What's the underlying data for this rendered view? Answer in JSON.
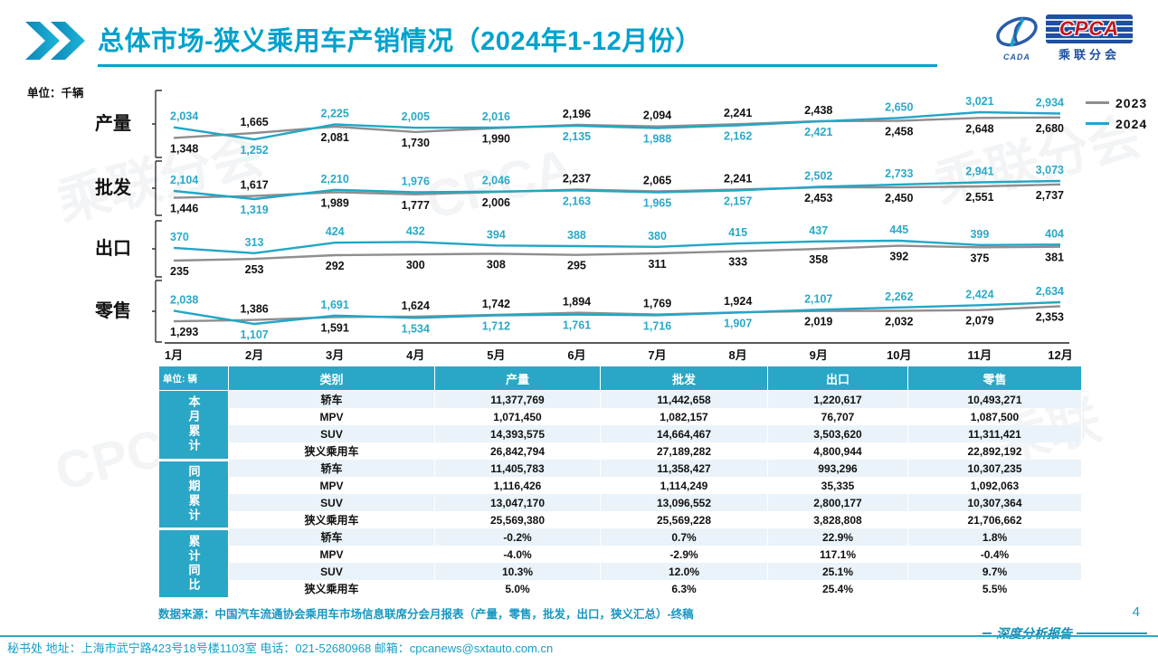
{
  "meta": {
    "chart_unit": "单位：千辆",
    "page_number": "4",
    "report_label": "深度分析报告"
  },
  "header": {
    "title": "总体市场-狭义乘用车产销情况（2024年1-12月份）",
    "logo": {
      "org_abbr": "CPCA",
      "org_sub": "乘联分会",
      "emblem_text": "CADA"
    }
  },
  "legend": {
    "items": [
      {
        "label": "2023",
        "color": "#8e8e8e"
      },
      {
        "label": "2024",
        "color": "#23a6c6"
      }
    ]
  },
  "chart_data": {
    "type": "line",
    "x": [
      "1月",
      "2月",
      "3月",
      "4月",
      "5月",
      "6月",
      "7月",
      "8月",
      "9月",
      "10月",
      "11月",
      "12月"
    ],
    "unit": "千辆",
    "grid": false,
    "legend_position": "top-right",
    "rows": [
      {
        "key": "production",
        "name": "产量",
        "series": [
          {
            "name": "2023",
            "color": "#8e8e8e",
            "label_color": "#111111",
            "values": [
              1348,
              1665,
              2081,
              1730,
              1990,
              2196,
              2094,
              2241,
              2438,
              2458,
              2648,
              2680
            ]
          },
          {
            "name": "2024",
            "color": "#23a6c6",
            "label_color": "#2ba9c7",
            "values": [
              2034,
              1252,
              2225,
              2005,
              2016,
              2135,
              1988,
              2162,
              2421,
              2650,
              3021,
              2934
            ]
          }
        ]
      },
      {
        "key": "wholesale",
        "name": "批发",
        "series": [
          {
            "name": "2023",
            "color": "#8e8e8e",
            "label_color": "#111111",
            "values": [
              1446,
              1617,
              1989,
              1777,
              2006,
              2237,
              2065,
              2241,
              2453,
              2450,
              2551,
              2737
            ]
          },
          {
            "name": "2024",
            "color": "#23a6c6",
            "label_color": "#2ba9c7",
            "values": [
              2104,
              1319,
              2210,
              1976,
              2046,
              2163,
              1965,
              2157,
              2502,
              2733,
              2941,
              3073
            ]
          }
        ]
      },
      {
        "key": "export",
        "name": "出口",
        "series": [
          {
            "name": "2023",
            "color": "#8e8e8e",
            "label_color": "#111111",
            "values": [
              235,
              253,
              292,
              300,
              308,
              295,
              311,
              333,
              358,
              392,
              375,
              381
            ]
          },
          {
            "name": "2024",
            "color": "#23a6c6",
            "label_color": "#2ba9c7",
            "values": [
              370,
              313,
              424,
              432,
              394,
              388,
              380,
              415,
              437,
              445,
              399,
              404
            ]
          }
        ]
      },
      {
        "key": "retail",
        "name": "零售",
        "series": [
          {
            "name": "2023",
            "color": "#8e8e8e",
            "label_color": "#111111",
            "values": [
              1293,
              1386,
              1591,
              1624,
              1742,
              1894,
              1769,
              1924,
              2019,
              2032,
              2079,
              2353
            ]
          },
          {
            "name": "2024",
            "color": "#23a6c6",
            "label_color": "#2ba9c7",
            "values": [
              2038,
              1107,
              1691,
              1534,
              1712,
              1761,
              1716,
              1907,
              2107,
              2262,
              2424,
              2634
            ]
          }
        ]
      }
    ]
  },
  "table": {
    "unit": "单位: 辆",
    "columns": [
      "类别",
      "产量",
      "批发",
      "出口",
      "零售"
    ],
    "groups": [
      {
        "label": "本月累计",
        "rows": [
          [
            "轿车",
            "11,377,769",
            "11,442,658",
            "1,220,617",
            "10,493,271"
          ],
          [
            "MPV",
            "1,071,450",
            "1,082,157",
            "76,707",
            "1,087,500"
          ],
          [
            "SUV",
            "14,393,575",
            "14,664,467",
            "3,503,620",
            "11,311,421"
          ],
          [
            "狭义乘用车",
            "26,842,794",
            "27,189,282",
            "4,800,944",
            "22,892,192"
          ]
        ]
      },
      {
        "label": "同期累计",
        "rows": [
          [
            "轿车",
            "11,405,783",
            "11,358,427",
            "993,296",
            "10,307,235"
          ],
          [
            "MPV",
            "1,116,426",
            "1,114,249",
            "35,335",
            "1,092,063"
          ],
          [
            "SUV",
            "13,047,170",
            "13,096,552",
            "2,800,177",
            "10,307,364"
          ],
          [
            "狭义乘用车",
            "25,569,380",
            "25,569,228",
            "3,828,808",
            "21,706,662"
          ]
        ]
      },
      {
        "label": "累计同比",
        "rows": [
          [
            "轿车",
            "-0.2%",
            "0.7%",
            "22.9%",
            "1.8%"
          ],
          [
            "MPV",
            "-4.0%",
            "-2.9%",
            "117.1%",
            "-0.4%"
          ],
          [
            "SUV",
            "10.3%",
            "12.0%",
            "25.1%",
            "9.7%"
          ],
          [
            "狭义乘用车",
            "5.0%",
            "6.3%",
            "25.4%",
            "5.5%"
          ]
        ]
      }
    ]
  },
  "source_note": "数据来源：中国汽车流通协会乘用车市场信息联席分会月报表（产量，零售，批发，出口，狭义汇总）-终稿",
  "footer": {
    "text": "秘书处  地址：上海市武宁路423号18号楼1103室 电话：021-52680968   邮箱：cpcanews@sxtauto.com.cn"
  }
}
